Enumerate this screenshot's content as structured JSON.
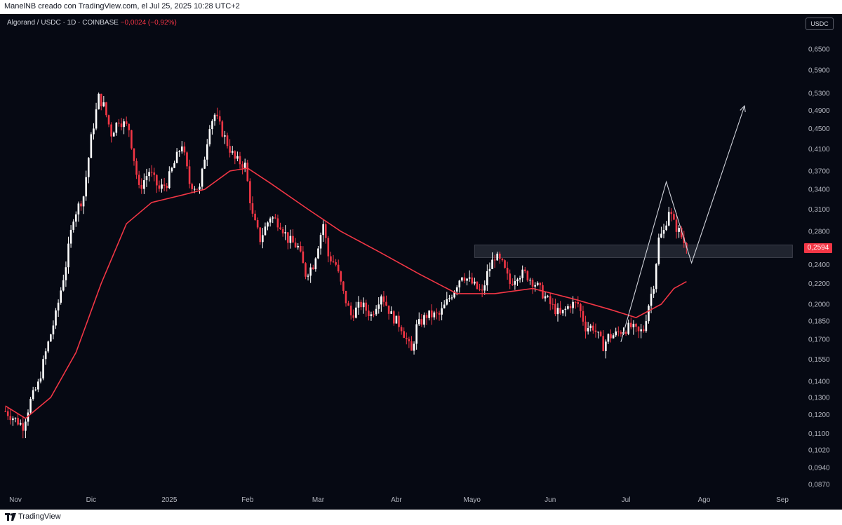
{
  "topbar": {
    "text": "ManelNB creado con TradingView.com, el Jul 25, 2025 10:28 UTC+2"
  },
  "header": {
    "symbol": "Algorand / USDC · 1D · COINBASE",
    "change": "−0,0024 (−0,92%)"
  },
  "currency_badge": "USDC",
  "last_price": "0,2594",
  "footer": {
    "brand": "TradingView"
  },
  "colors": {
    "background": "#060913",
    "up": "#ffffff",
    "down": "#f23645",
    "ma": "#f23645",
    "annotation": "#cfd2da",
    "zone": "#2a2e39"
  },
  "chart_data": {
    "type": "candlestick",
    "scale": "log",
    "grid": false,
    "legend": "none",
    "y_ticks": [
      "0,6500",
      "0,5900",
      "0,5300",
      "0,4900",
      "0,4500",
      "0,4100",
      "0,3700",
      "0,3400",
      "0,3100",
      "0,2800",
      "0,2400",
      "0,2200",
      "0,2000",
      "0,1850",
      "0,1700",
      "0,1550",
      "0,1400",
      "0,1300",
      "0,1200",
      "0,1100",
      "0,1020",
      "0,0940",
      "0,0870"
    ],
    "y_tick_values": [
      0.65,
      0.59,
      0.53,
      0.49,
      0.45,
      0.41,
      0.37,
      0.34,
      0.31,
      0.28,
      0.24,
      0.22,
      0.2,
      0.185,
      0.17,
      0.155,
      0.14,
      0.13,
      0.12,
      0.11,
      0.102,
      0.094,
      0.087
    ],
    "x_ticks": [
      {
        "label": "Nov",
        "date": "2024-11-01"
      },
      {
        "label": "Dic",
        "date": "2024-12-01"
      },
      {
        "label": "2025",
        "date": "2025-01-01"
      },
      {
        "label": "Feb",
        "date": "2025-02-01"
      },
      {
        "label": "Mar",
        "date": "2025-03-01"
      },
      {
        "label": "Abr",
        "date": "2025-04-01"
      },
      {
        "label": "Mayo",
        "date": "2025-05-01"
      },
      {
        "label": "Jun",
        "date": "2025-06-01"
      },
      {
        "label": "Jul",
        "date": "2025-07-01"
      },
      {
        "label": "Ago",
        "date": "2025-08-01"
      },
      {
        "label": "Sep",
        "date": "2025-09-01"
      }
    ],
    "close_anchors": [
      [
        "2024-10-28",
        0.122
      ],
      [
        "2024-11-04",
        0.114
      ],
      [
        "2024-11-07",
        0.128
      ],
      [
        "2024-11-10",
        0.138
      ],
      [
        "2024-11-13",
        0.16
      ],
      [
        "2024-11-17",
        0.19
      ],
      [
        "2024-11-21",
        0.24
      ],
      [
        "2024-11-24",
        0.3
      ],
      [
        "2024-11-28",
        0.33
      ],
      [
        "2024-12-01",
        0.43
      ],
      [
        "2024-12-04",
        0.52
      ],
      [
        "2024-12-06",
        0.5
      ],
      [
        "2024-12-09",
        0.44
      ],
      [
        "2024-12-12",
        0.47
      ],
      [
        "2024-12-16",
        0.45
      ],
      [
        "2024-12-20",
        0.34
      ],
      [
        "2024-12-24",
        0.37
      ],
      [
        "2024-12-28",
        0.34
      ],
      [
        "2024-12-31",
        0.35
      ],
      [
        "2025-01-06",
        0.42
      ],
      [
        "2025-01-09",
        0.35
      ],
      [
        "2025-01-13",
        0.34
      ],
      [
        "2025-01-17",
        0.46
      ],
      [
        "2025-01-19",
        0.48
      ],
      [
        "2025-01-24",
        0.42
      ],
      [
        "2025-01-27",
        0.39
      ],
      [
        "2025-01-31",
        0.38
      ],
      [
        "2025-02-03",
        0.3
      ],
      [
        "2025-02-06",
        0.27
      ],
      [
        "2025-02-10",
        0.3
      ],
      [
        "2025-02-14",
        0.29
      ],
      [
        "2025-02-17",
        0.27
      ],
      [
        "2025-02-21",
        0.26
      ],
      [
        "2025-02-24",
        0.23
      ],
      [
        "2025-02-27",
        0.24
      ],
      [
        "2025-03-03",
        0.29
      ],
      [
        "2025-03-05",
        0.25
      ],
      [
        "2025-03-08",
        0.24
      ],
      [
        "2025-03-11",
        0.21
      ],
      [
        "2025-03-14",
        0.19
      ],
      [
        "2025-03-18",
        0.2
      ],
      [
        "2025-03-22",
        0.19
      ],
      [
        "2025-03-26",
        0.21
      ],
      [
        "2025-03-30",
        0.19
      ],
      [
        "2025-04-03",
        0.18
      ],
      [
        "2025-04-07",
        0.16
      ],
      [
        "2025-04-09",
        0.18
      ],
      [
        "2025-04-13",
        0.19
      ],
      [
        "2025-04-18",
        0.19
      ],
      [
        "2025-04-23",
        0.21
      ],
      [
        "2025-04-27",
        0.23
      ],
      [
        "2025-05-01",
        0.22
      ],
      [
        "2025-05-05",
        0.21
      ],
      [
        "2025-05-07",
        0.23
      ],
      [
        "2025-05-10",
        0.25
      ],
      [
        "2025-05-13",
        0.24
      ],
      [
        "2025-05-16",
        0.22
      ],
      [
        "2025-05-19",
        0.23
      ],
      [
        "2025-05-22",
        0.23
      ],
      [
        "2025-05-26",
        0.22
      ],
      [
        "2025-05-29",
        0.21
      ],
      [
        "2025-06-01",
        0.2
      ],
      [
        "2025-06-05",
        0.19
      ],
      [
        "2025-06-09",
        0.2
      ],
      [
        "2025-06-12",
        0.2
      ],
      [
        "2025-06-15",
        0.18
      ],
      [
        "2025-06-18",
        0.18
      ],
      [
        "2025-06-22",
        0.165
      ],
      [
        "2025-06-24",
        0.172
      ],
      [
        "2025-06-27",
        0.174
      ],
      [
        "2025-06-30",
        0.178
      ],
      [
        "2025-07-03",
        0.18
      ],
      [
        "2025-07-06",
        0.175
      ],
      [
        "2025-07-08",
        0.178
      ],
      [
        "2025-07-10",
        0.2
      ],
      [
        "2025-07-12",
        0.22
      ],
      [
        "2025-07-14",
        0.27
      ],
      [
        "2025-07-16",
        0.28
      ],
      [
        "2025-07-18",
        0.31
      ],
      [
        "2025-07-20",
        0.29
      ],
      [
        "2025-07-22",
        0.28
      ],
      [
        "2025-07-25",
        0.2594
      ]
    ],
    "moving_average": [
      [
        "2024-10-28",
        0.125
      ],
      [
        "2024-11-05",
        0.118
      ],
      [
        "2024-11-15",
        0.13
      ],
      [
        "2024-11-25",
        0.16
      ],
      [
        "2024-12-05",
        0.22
      ],
      [
        "2024-12-15",
        0.29
      ],
      [
        "2024-12-25",
        0.32
      ],
      [
        "2025-01-05",
        0.33
      ],
      [
        "2025-01-15",
        0.34
      ],
      [
        "2025-01-25",
        0.37
      ],
      [
        "2025-02-01",
        0.375
      ],
      [
        "2025-02-10",
        0.35
      ],
      [
        "2025-02-25",
        0.31
      ],
      [
        "2025-03-10",
        0.28
      ],
      [
        "2025-03-25",
        0.255
      ],
      [
        "2025-04-10",
        0.23
      ],
      [
        "2025-04-25",
        0.21
      ],
      [
        "2025-05-10",
        0.21
      ],
      [
        "2025-05-25",
        0.215
      ],
      [
        "2025-06-10",
        0.205
      ],
      [
        "2025-06-25",
        0.195
      ],
      [
        "2025-07-05",
        0.188
      ],
      [
        "2025-07-15",
        0.2
      ],
      [
        "2025-07-20",
        0.215
      ],
      [
        "2025-07-25",
        0.222
      ]
    ],
    "resistance_zone": {
      "from_date": "2025-05-02",
      "to_date": "2025-09-05",
      "low": 0.248,
      "high": 0.263
    },
    "projection_path": [
      [
        "2025-06-29",
        0.168
      ],
      [
        "2025-07-17",
        0.352
      ],
      [
        "2025-07-27",
        0.242
      ],
      [
        "2025-08-17",
        0.5
      ]
    ]
  }
}
